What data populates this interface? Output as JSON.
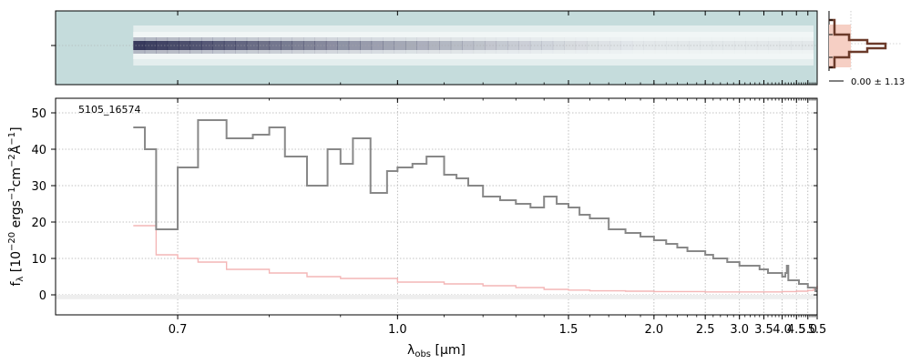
{
  "chart_data": [
    {
      "type": "heatmap",
      "panel": "2d-spectrum",
      "background_color": "#c5dcdc",
      "trace_color": "#2b2d52",
      "x_range": [
        0.6,
        5.5
      ],
      "trace_start": 0.66
    },
    {
      "type": "line",
      "panel": "1d-spectrum",
      "title": "",
      "annotation": "5105_16574",
      "xlabel": "λ_obs [μm]",
      "ylabel": "f_λ [10^-20 ergs^-1cm^-2Å^-1]",
      "xlim": [
        0.6,
        5.5
      ],
      "ylim": [
        -5.5,
        54
      ],
      "x_scale": "reciprocal",
      "grid": true,
      "x_ticks": [
        0.7,
        1.0,
        1.5,
        2.0,
        2.5,
        3.0,
        3.5,
        4.0,
        4.5,
        5.0,
        5.5
      ],
      "x_tick_labels": [
        "0.7",
        "1.0",
        "1.5",
        "2.0",
        "2.5",
        "3.0",
        "3.5",
        "4.0",
        "4.5",
        "5.0",
        "5.5"
      ],
      "y_ticks": [
        0,
        10,
        20,
        30,
        40,
        50
      ],
      "y_tick_labels": [
        "0",
        "10",
        "20",
        "30",
        "40",
        "50"
      ],
      "series": [
        {
          "color": "#888888",
          "x": [
            0.66,
            0.67,
            0.68,
            0.7,
            0.72,
            0.75,
            0.78,
            0.8,
            0.82,
            0.85,
            0.88,
            0.9,
            0.92,
            0.95,
            0.98,
            1.0,
            1.03,
            1.06,
            1.1,
            1.13,
            1.16,
            1.2,
            1.25,
            1.3,
            1.35,
            1.4,
            1.45,
            1.5,
            1.55,
            1.6,
            1.7,
            1.8,
            1.9,
            2.0,
            2.1,
            2.2,
            2.3,
            2.4,
            2.5,
            2.6,
            2.7,
            2.8,
            2.9,
            3.0,
            3.2,
            3.4,
            3.6,
            3.8,
            4.0,
            4.1,
            4.15,
            4.2,
            4.4,
            4.6,
            4.8,
            5.0,
            5.2,
            5.4,
            5.5
          ],
          "y": [
            46,
            40,
            18,
            35,
            48,
            43,
            44,
            46,
            38,
            30,
            40,
            36,
            43,
            28,
            34,
            35,
            36,
            38,
            33,
            32,
            30,
            27,
            26,
            25,
            24,
            27,
            25,
            24,
            22,
            21,
            18,
            17,
            16,
            15,
            14,
            13,
            12,
            12,
            11,
            10,
            10,
            9,
            9,
            8,
            8,
            7,
            6,
            6,
            5,
            6,
            8,
            4,
            4,
            3,
            3,
            2,
            2,
            1,
            1
          ]
        },
        {
          "color": "#f4b6b6",
          "x": [
            0.66,
            0.68,
            0.7,
            0.72,
            0.75,
            0.8,
            0.85,
            0.9,
            1.0,
            1.1,
            1.2,
            1.3,
            1.4,
            1.5,
            1.6,
            1.8,
            2.0,
            2.5,
            3.0,
            3.5,
            4.0,
            4.5,
            5.0,
            5.3,
            5.5
          ],
          "y": [
            19,
            11,
            10,
            9,
            7,
            6,
            5,
            4.5,
            3.5,
            3,
            2.5,
            2,
            1.5,
            1.3,
            1.1,
            1,
            0.9,
            0.8,
            0.8,
            0.8,
            0.9,
            1,
            1.2,
            1.8,
            2.5
          ]
        }
      ]
    },
    {
      "type": "area",
      "panel": "profile",
      "label": "0.00 ± 1.13",
      "profile_color": "#6b3a2a",
      "fill_color": "#f6cfc4"
    }
  ]
}
